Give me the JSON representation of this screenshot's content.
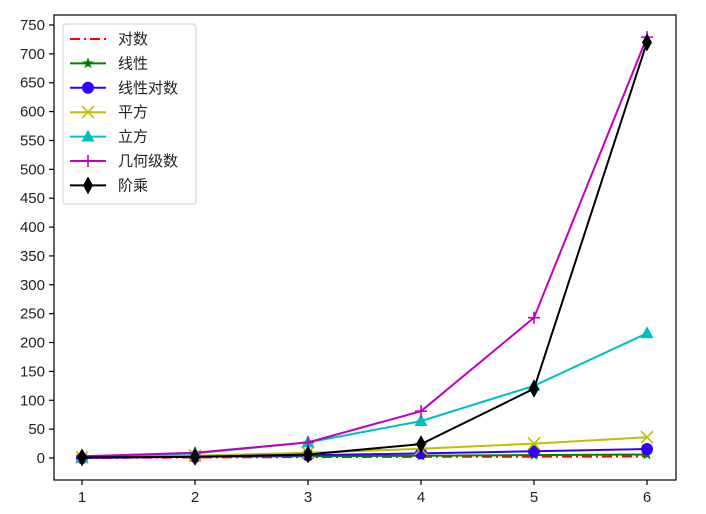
{
  "chart_data": {
    "type": "line",
    "title": "",
    "xlabel": "",
    "ylabel": "",
    "x": [
      1,
      2,
      3,
      4,
      5,
      6
    ],
    "xticks": [
      1,
      2,
      3,
      4,
      5,
      6
    ],
    "yticks": [
      0,
      50,
      100,
      150,
      200,
      250,
      300,
      350,
      400,
      450,
      500,
      550,
      600,
      650,
      700,
      750
    ],
    "xlim": [
      0.75,
      6.25
    ],
    "ylim": [
      -36.5,
      768
    ],
    "grid": false,
    "legend_position": "upper left",
    "series": [
      {
        "name": "对数",
        "color": "#ff0000",
        "marker": "none",
        "linestyle": "dashdot",
        "values": [
          0,
          1,
          1.58,
          2,
          2.32,
          2.58
        ]
      },
      {
        "name": "线性",
        "color": "#008000",
        "marker": "star",
        "linestyle": "solid",
        "values": [
          1,
          2,
          3,
          4,
          5,
          6
        ]
      },
      {
        "name": "线性对数",
        "color": "#3300ff",
        "marker": "circle",
        "linestyle": "solid",
        "values": [
          0,
          2,
          4.75,
          8,
          11.61,
          15.51
        ]
      },
      {
        "name": "平方",
        "color": "#bfbf00",
        "marker": "x",
        "linestyle": "solid",
        "values": [
          1,
          4,
          9,
          16,
          25,
          36
        ]
      },
      {
        "name": "立方",
        "color": "#00bfbf",
        "marker": "triangle",
        "linestyle": "solid",
        "values": [
          1,
          8,
          27,
          64,
          125,
          216
        ]
      },
      {
        "name": "几何级数",
        "color": "#bf00bf",
        "marker": "plus",
        "linestyle": "solid",
        "values": [
          3,
          9,
          27,
          81,
          243,
          729
        ]
      },
      {
        "name": "阶乘",
        "color": "#000000",
        "marker": "diamond",
        "linestyle": "solid",
        "values": [
          1,
          2,
          6,
          24,
          120,
          720
        ]
      }
    ]
  }
}
